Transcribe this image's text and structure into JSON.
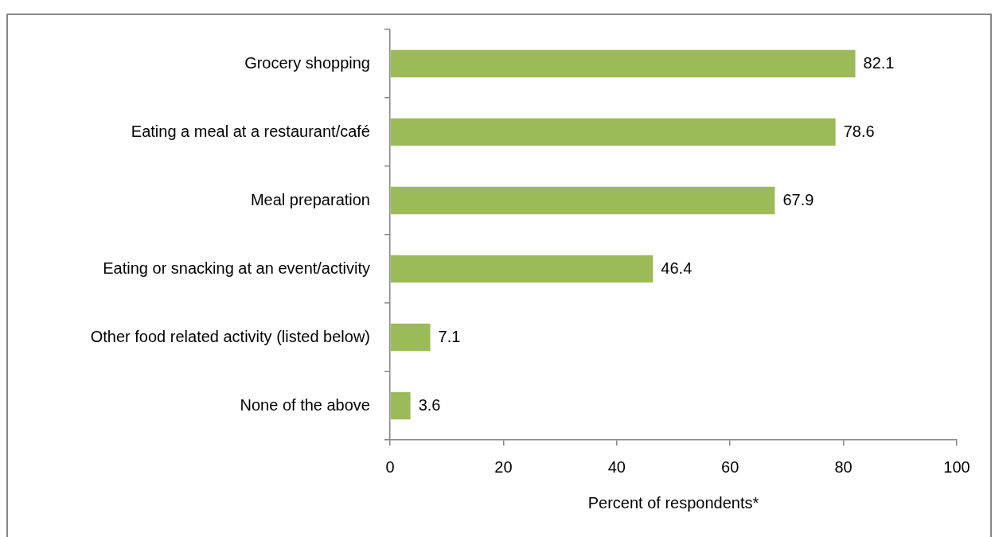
{
  "chart_data": {
    "type": "bar",
    "orientation": "horizontal",
    "categories": [
      "Grocery shopping",
      "Eating a meal at a restaurant/café",
      "Meal preparation",
      "Eating or snacking at an event/activity",
      "Other food related activity (listed below)",
      "None of the above"
    ],
    "values": [
      82.1,
      78.6,
      67.9,
      46.4,
      7.1,
      3.6
    ],
    "color": "#9bbb59",
    "xlim": [
      0,
      100
    ],
    "xticks": [
      0,
      20,
      40,
      60,
      80,
      100
    ],
    "xlabel": "Percent of respondents*",
    "data_labels": true,
    "grid": false,
    "legend": false
  }
}
